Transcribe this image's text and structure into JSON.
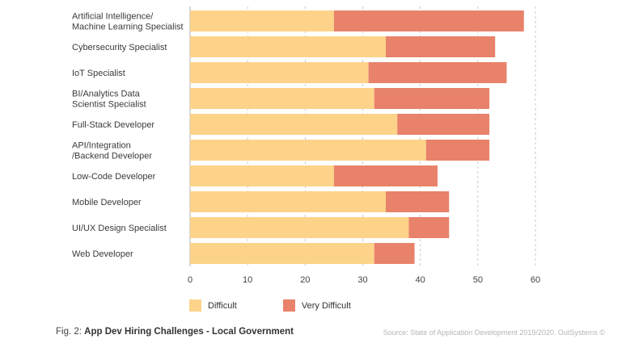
{
  "chart_data": {
    "type": "bar",
    "orientation": "horizontal",
    "stacked": true,
    "categories": [
      [
        "Artificial Intelligence/",
        "Machine Learning Specialist"
      ],
      [
        "Cybersecurity Specialist"
      ],
      [
        "IoT Specialist"
      ],
      [
        "BI/Analytics Data",
        "Scientist Specialist"
      ],
      [
        "Full-Stack Developer"
      ],
      [
        "API/Integration",
        "/Backend Developer"
      ],
      [
        "Low-Code Developer"
      ],
      [
        "Mobile Developer"
      ],
      [
        "UI/UX Design Specialist"
      ],
      [
        "Web Developer"
      ]
    ],
    "series": [
      {
        "name": "Difficult",
        "color": "#FDD38A",
        "values": [
          25,
          34,
          31,
          32,
          36,
          41,
          25,
          34,
          38,
          32
        ]
      },
      {
        "name": "Very Difficult",
        "color": "#E8826A",
        "values": [
          33,
          19,
          24,
          20,
          16,
          11,
          18,
          11,
          7,
          7
        ]
      }
    ],
    "xlim": [
      0,
      60
    ],
    "xticks": [
      0,
      10,
      20,
      30,
      40,
      50,
      60
    ],
    "grid": true,
    "legend_position": "bottom-left"
  },
  "caption": {
    "prefix": "Fig. 2: ",
    "title": "App Dev Hiring Challenges - Local Government"
  },
  "source": "Source: State of Application Development 2019/2020. OutSystems ©"
}
